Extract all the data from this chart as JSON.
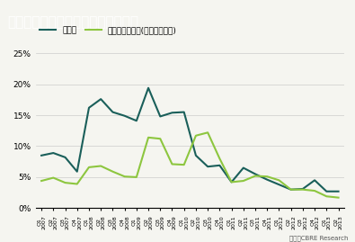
{
  "title": "大型マルチテナント型施設　空室率",
  "title_bg": "#1a6b5a",
  "title_color": "#ffffff",
  "legend_labels": [
    "空室率",
    "既存物件空室率(竣工１年以上)"
  ],
  "line1_color": "#1a5f5a",
  "line2_color": "#8dc63f",
  "source_text": "出所：CBRE Research",
  "xlabels": [
    "2007 Q1",
    "2007 Q2",
    "2007 Q3",
    "2007 Q4",
    "2008 Q1",
    "2008 Q2",
    "2008 Q3",
    "2008 Q4",
    "2009 Q1",
    "2009 Q2",
    "2009 Q3",
    "2009 Q4",
    "2010 Q1",
    "2010 Q2",
    "2010 Q3",
    "2010 Q4",
    "2011 Q1",
    "2011 Q2",
    "2011 Q3",
    "2011 Q4",
    "2012 Q1",
    "2012 Q2",
    "2012 Q3",
    "2012 Q4",
    "2013 Q1",
    "2013 Q2"
  ],
  "vacancy_rate": [
    8.5,
    8.9,
    8.2,
    5.9,
    16.2,
    17.6,
    15.5,
    14.9,
    14.1,
    19.4,
    14.8,
    15.4,
    15.5,
    8.5,
    6.7,
    6.9,
    4.2,
    6.5,
    5.5,
    4.6,
    3.8,
    3.0,
    3.1,
    4.5,
    2.7,
    2.7
  ],
  "existing_vacancy_rate": [
    4.4,
    4.9,
    4.1,
    3.9,
    6.6,
    6.8,
    5.9,
    5.1,
    5.0,
    11.4,
    11.2,
    7.1,
    7.0,
    11.7,
    12.2,
    8.0,
    4.2,
    4.4,
    5.2,
    5.1,
    4.5,
    3.0,
    3.0,
    2.8,
    1.9,
    1.7
  ],
  "ylim": [
    0,
    25
  ],
  "yticks": [
    0,
    5,
    10,
    15,
    20,
    25
  ],
  "bg_color": "#f5f5f0"
}
